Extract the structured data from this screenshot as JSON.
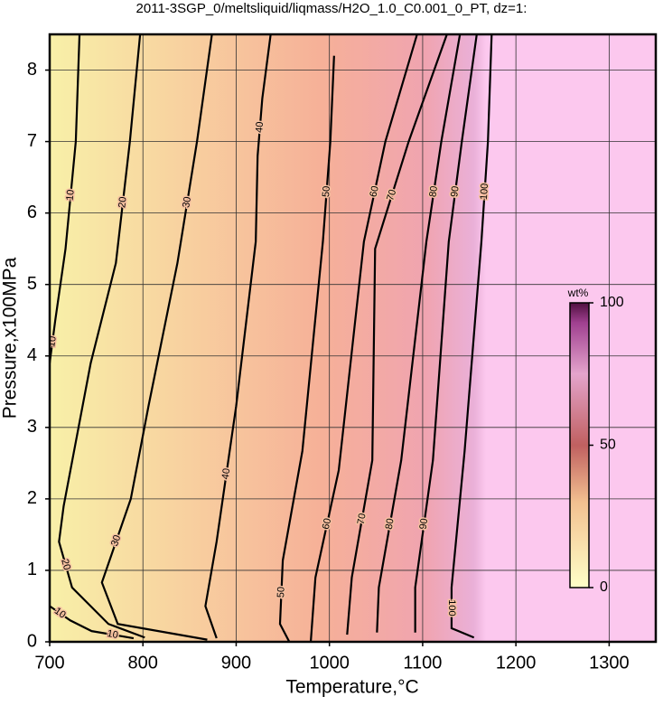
{
  "chart_data": {
    "type": "contour",
    "title": "2011-3SGP_0/meltsliquid/liqmass/H2O_1.0_C0.001_0_PT, dz=1:",
    "x_label": "Temperature,°C",
    "y_label": "Pressure,x100MPa",
    "xlim": [
      700,
      1350
    ],
    "xticks": [
      700,
      800,
      900,
      1000,
      1100,
      1200,
      1300
    ],
    "ylim": [
      0,
      8.5
    ],
    "yticks": [
      0,
      1,
      2,
      3,
      4,
      5,
      6,
      7,
      8
    ],
    "grid": true,
    "contours": [
      {
        "level": 10,
        "x": [
          732,
          728,
          717,
          706,
          700,
          null,
          700,
          722,
          745,
          790
        ],
        "y": [
          8.5,
          7,
          5.5,
          4.5,
          3.9,
          null,
          0.5,
          0.3,
          0.15,
          0.05
        ]
      },
      {
        "level": 20,
        "x": [
          797,
          786,
          771,
          744,
          715,
          710,
          724,
          763,
          802
        ],
        "y": [
          8.5,
          7,
          5.3,
          3.9,
          1.9,
          1.4,
          0.76,
          0.25,
          0.06
        ]
      },
      {
        "level": 30,
        "x": [
          874,
          858,
          837,
          806,
          787,
          756,
          773,
          869
        ],
        "y": [
          8.5,
          7,
          5.3,
          3.3,
          2,
          0.83,
          0.25,
          0.03
        ]
      },
      {
        "level": 40,
        "x": [
          937,
          928,
          923,
          921,
          900,
          879,
          867,
          879
        ],
        "y": [
          8.5,
          7.6,
          6.8,
          5.6,
          3.3,
          1.4,
          0.5,
          0.05
        ]
      },
      {
        "level": 50,
        "x": [
          1005,
          1001,
          993,
          971,
          950,
          947,
          957
        ],
        "y": [
          8.2,
          7,
          5.6,
          2.67,
          1.14,
          0.25,
          0
        ]
      },
      {
        "level": 60,
        "x": [
          1094,
          1060,
          1037,
          1010,
          985,
          980
        ],
        "y": [
          8.5,
          7,
          5.6,
          2.4,
          0.9,
          0
        ]
      },
      {
        "level": 70,
        "x": [
          1126,
          1085,
          1049,
          1046,
          1024,
          1019
        ],
        "y": [
          8.5,
          7,
          5.5,
          2.54,
          0.9,
          0.1
        ]
      },
      {
        "level": 80,
        "x": [
          1140,
          1120,
          1104,
          1077,
          1053,
          1051
        ],
        "y": [
          8.5,
          7,
          5.6,
          2.54,
          0.76,
          0.13
        ]
      },
      {
        "level": 90,
        "x": [
          1158,
          1142,
          1128,
          1111,
          1092,
          1092
        ],
        "y": [
          8.5,
          7,
          5.6,
          2.54,
          0.76,
          0.13
        ]
      },
      {
        "level": 100,
        "x": [
          1174,
          1170,
          1163,
          1145,
          1131,
          1131,
          1155
        ],
        "y": [
          8.5,
          7,
          5.6,
          2.67,
          0.76,
          0.19,
          0.06
        ]
      }
    ],
    "colorbar": {
      "label": "wt%",
      "lim": [
        0,
        100
      ],
      "ticks": [
        0,
        50,
        100
      ]
    }
  }
}
